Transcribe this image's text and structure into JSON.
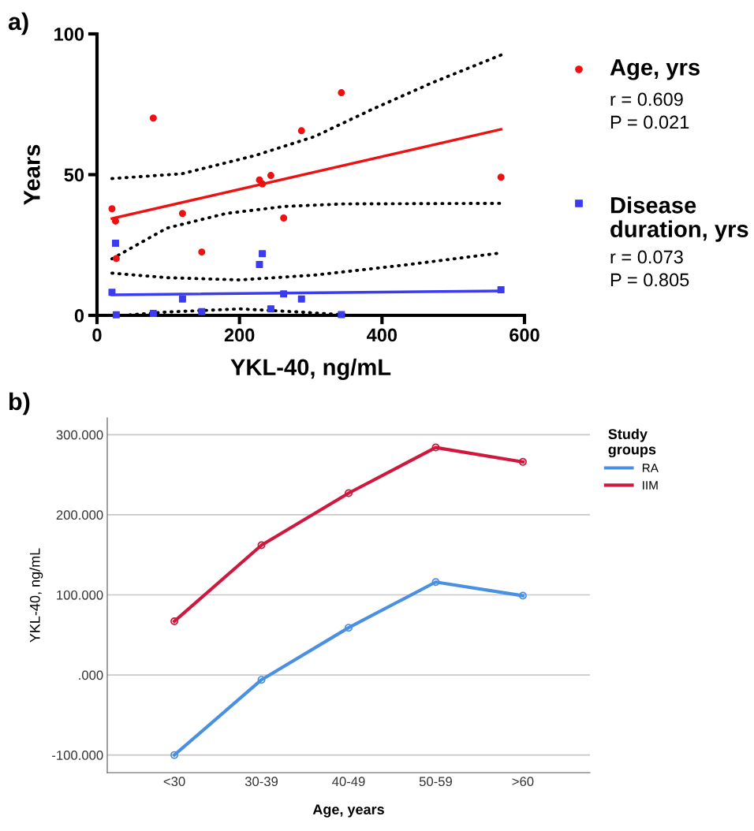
{
  "chart_data": [
    {
      "type": "scatter",
      "title": "a)",
      "xlabel": "YKL-40, ng/mL",
      "ylabel": "Years",
      "xlim": [
        0,
        600
      ],
      "xticks": [
        0,
        200,
        400,
        600
      ],
      "ylim": [
        0,
        100
      ],
      "yticks": [
        0,
        50,
        100
      ],
      "grid": false,
      "legend": "right",
      "series": [
        {
          "name": "Age, yrs",
          "type": "scatter",
          "marker": "circle",
          "color": "#ee1111",
          "x": [
            21,
            26,
            27,
            79,
            120,
            147,
            228,
            232,
            244,
            262,
            287,
            343,
            567
          ],
          "values": [
            37.9,
            33.5,
            20.2,
            70.1,
            36.2,
            22.5,
            48.1,
            46.7,
            49.7,
            34.6,
            65.6,
            79.1,
            49.1
          ]
        },
        {
          "name": "Disease duration, yrs",
          "type": "scatter",
          "marker": "square",
          "color": "#3b3bf0",
          "x": [
            26,
            21,
            27,
            79,
            120,
            147,
            228,
            232,
            244,
            262,
            287,
            343,
            567
          ],
          "values": [
            25.6,
            8.2,
            0.2,
            0.7,
            5.8,
            1.3,
            18.1,
            21.9,
            2.3,
            7.6,
            5.8,
            0.3,
            9.1
          ]
        },
        {
          "type": "line",
          "line_style": "solid",
          "color": "#ee1111",
          "x": [
            21,
            567
          ],
          "values": [
            34.4,
            66.1
          ]
        },
        {
          "type": "line",
          "line_style": "solid",
          "color": "#3b3bf0",
          "x": [
            21,
            567
          ],
          "values": [
            7.3,
            8.7
          ]
        },
        {
          "type": "line",
          "line_style": "dotted",
          "color": "#000000",
          "x": [
            21,
            119,
            222,
            305,
            387,
            470,
            567
          ],
          "values": [
            48.6,
            50.3,
            56.8,
            63.5,
            73.3,
            82.6,
            92.5
          ]
        },
        {
          "type": "line",
          "line_style": "dotted",
          "color": "#000000",
          "x": [
            21,
            98,
            181,
            263,
            346,
            565
          ],
          "values": [
            20.1,
            31.0,
            36.2,
            38.7,
            39.6,
            39.8
          ]
        },
        {
          "type": "line",
          "line_style": "dotted",
          "color": "#000000",
          "x": [
            21,
            98,
            201,
            305,
            429,
            561
          ],
          "values": [
            15.0,
            13.4,
            12.6,
            14.3,
            17.8,
            22.0
          ]
        },
        {
          "type": "line",
          "line_style": "dotted",
          "color": "#000000",
          "x": [
            36,
            98,
            201,
            284,
            358
          ],
          "values": [
            0,
            1.2,
            2.3,
            1.2,
            0
          ]
        }
      ],
      "annotations": [
        "r = 0.609",
        "P = 0.021",
        "r = 0.073",
        "P = 0.805"
      ]
    },
    {
      "type": "line",
      "title": "b)",
      "xlabel": "Age, years",
      "ylabel": "YKL-40, ng/mL",
      "categories": [
        "<30",
        "30-39",
        "40-49",
        "50-59",
        ">60"
      ],
      "ylim": [
        -122,
        321
      ],
      "yticks": [
        {
          "value": -100,
          "label": "-100.000"
        },
        {
          "value": 0,
          "label": ".000"
        },
        {
          "value": 100,
          "label": "100.000"
        },
        {
          "value": 200,
          "label": "200.000"
        },
        {
          "value": 300,
          "label": "300.000"
        }
      ],
      "grid": "y",
      "legend": "top right",
      "legend_title": "Study groups",
      "marker": "circle",
      "series": [
        {
          "name": "RA",
          "color": "#4a90e2",
          "values": [
            -100,
            -6,
            59,
            116,
            99
          ]
        },
        {
          "name": "IIM",
          "color": "#d0173e",
          "values": [
            67,
            162,
            227,
            284,
            266
          ]
        }
      ]
    }
  ]
}
